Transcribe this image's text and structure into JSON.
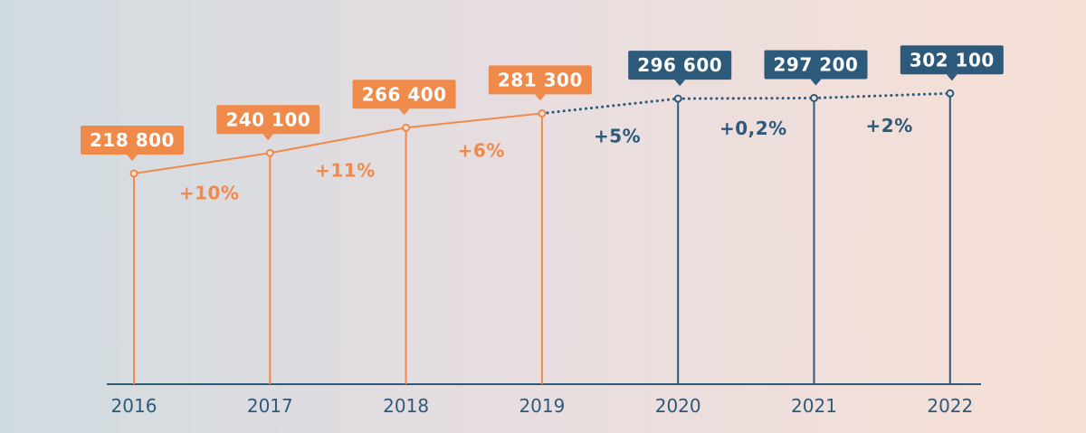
{
  "chart_data": {
    "type": "line",
    "categories": [
      "2016",
      "2017",
      "2018",
      "2019",
      "2020",
      "2021",
      "2022"
    ],
    "values": [
      218800,
      240100,
      266400,
      281300,
      296600,
      297200,
      302100
    ],
    "value_labels": [
      "218 800",
      "240 100",
      "266 400",
      "281 300",
      "296 600",
      "297 200",
      "302 100"
    ],
    "changes": [
      "+10%",
      "+11%",
      "+6%",
      "+5%",
      "+0,2%",
      "+2%"
    ],
    "ylim": [
      0,
      320000
    ],
    "grid": false,
    "colors": {
      "actual": "#f08a4b",
      "projected": "#2d5a7b",
      "axis": "#2d5a7b",
      "label_text": "#ffffff"
    },
    "projected_from_index": 3
  }
}
